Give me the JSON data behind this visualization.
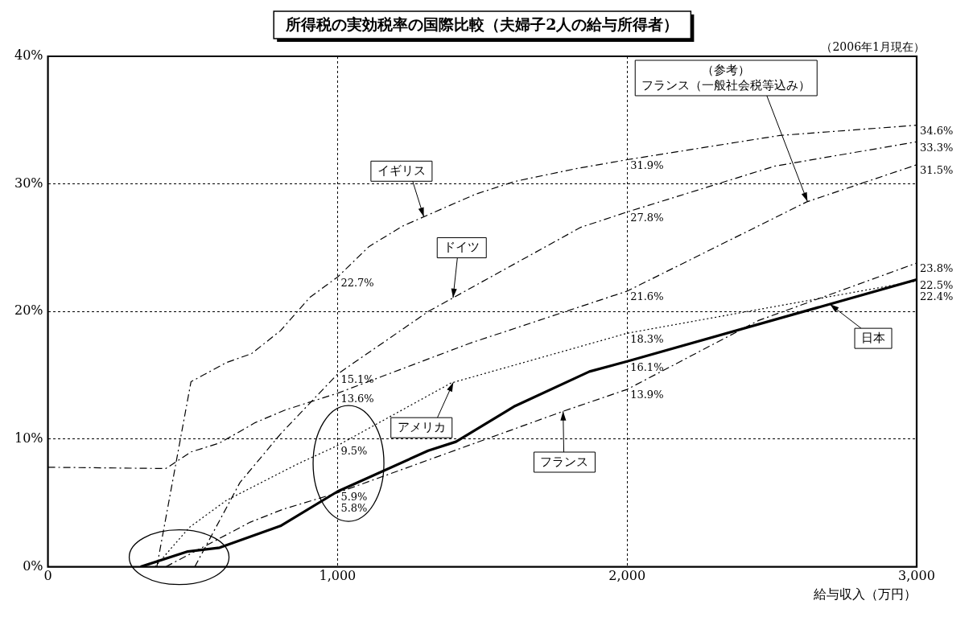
{
  "chart_data": {
    "type": "line",
    "title": "所得税の実効税率の国際比較（夫婦子2人の給与所得者）",
    "subtitle": "（2006年1月現在）",
    "xlabel": "給与収入（万円）",
    "xlim": [
      0,
      3000
    ],
    "xticks": [
      {
        "value": 0,
        "label": "0"
      },
      {
        "value": 1000,
        "label": "1,000"
      },
      {
        "value": 2000,
        "label": "2,000"
      },
      {
        "value": 3000,
        "label": "3,000"
      }
    ],
    "ylim": [
      0,
      40
    ],
    "yticks": [
      {
        "value": 0,
        "label": "0%"
      },
      {
        "value": 10,
        "label": "10%"
      },
      {
        "value": 20,
        "label": "20%"
      },
      {
        "value": 30,
        "label": "30%"
      },
      {
        "value": 40,
        "label": "40%"
      }
    ],
    "grid": true,
    "legend": false,
    "marker": "none",
    "series": [
      {
        "name": "日本",
        "color": "#000000",
        "line_style": "solid",
        "x": [
          320,
          483,
          593,
          803,
          1000,
          1313,
          1409,
          1613,
          1870,
          2000,
          3000
        ],
        "values": [
          0,
          1.2,
          1.5,
          3.2,
          5.9,
          9.1,
          9.8,
          12.6,
          15.3,
          16.1,
          22.5
        ],
        "value_labels": [
          null,
          null,
          null,
          null,
          "5.9%",
          null,
          null,
          null,
          null,
          "16.1%",
          "22.5%"
        ]
      },
      {
        "name": "イギリス",
        "color": "#000000",
        "line_style": "dashed",
        "x": [
          376,
          494,
          616,
          703,
          803,
          904,
          1000,
          1109,
          1225,
          1477,
          1613,
          1824,
          2000,
          2528,
          3000
        ],
        "values": [
          0,
          14.5,
          16.0,
          16.7,
          18.5,
          21.1,
          22.7,
          25.1,
          26.7,
          29.2,
          30.2,
          31.2,
          31.9,
          33.8,
          34.6
        ],
        "value_labels": [
          null,
          null,
          null,
          null,
          null,
          null,
          "22.7%",
          null,
          null,
          null,
          null,
          null,
          "31.9%",
          null,
          "34.6%"
        ]
      },
      {
        "name": "ドイツ",
        "color": "#000000",
        "line_style": "dashed",
        "x": [
          507,
          663,
          803,
          1000,
          1313,
          1840,
          2000,
          2511,
          3000
        ],
        "values": [
          0,
          6.6,
          10.4,
          15.1,
          20.0,
          26.6,
          27.8,
          31.4,
          33.3
        ],
        "value_labels": [
          null,
          null,
          null,
          "15.1%",
          null,
          null,
          "27.8%",
          null,
          "33.3%"
        ]
      },
      {
        "name": "（参考）フランス（一般社会税等込み）",
        "color": "#000000",
        "line_style": "dashed",
        "x": [
          0,
          407,
          494,
          593,
          716,
          821,
          1000,
          1455,
          2000,
          2621,
          3000
        ],
        "values": [
          7.8,
          7.7,
          9.0,
          9.7,
          11.3,
          12.3,
          13.6,
          17.5,
          21.6,
          28.6,
          31.5
        ],
        "value_labels": [
          null,
          null,
          null,
          null,
          null,
          null,
          "13.6%",
          null,
          "21.6%",
          null,
          "31.5%"
        ]
      },
      {
        "name": "アメリカ",
        "color": "#000000",
        "line_style": "dotted",
        "x": [
          370,
          489,
          616,
          857,
          1000,
          1392,
          2000,
          3000
        ],
        "values": [
          0,
          3.1,
          5.2,
          8.0,
          9.5,
          14.4,
          18.3,
          22.4
        ],
        "value_labels": [
          null,
          null,
          null,
          null,
          "9.5%",
          null,
          "18.3%",
          "22.4%"
        ]
      },
      {
        "name": "フランス",
        "color": "#000000",
        "line_style": "dashed",
        "x": [
          407,
          699,
          811,
          1000,
          1781,
          2000,
          2454,
          3000
        ],
        "values": [
          0,
          3.5,
          4.5,
          5.8,
          12.2,
          13.9,
          19.3,
          23.8
        ],
        "value_labels": [
          null,
          null,
          null,
          "5.8%",
          null,
          "13.9%",
          null,
          "23.8%"
        ]
      }
    ]
  }
}
